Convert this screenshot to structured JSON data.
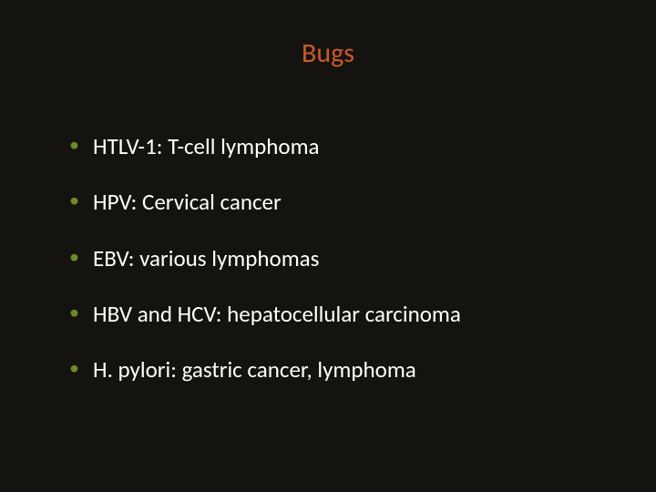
{
  "slide": {
    "title": "Bugs",
    "title_color": "#c75a2e",
    "bullet_color": "#6b8e23",
    "text_color": "#ffffff",
    "background_color": "#15130f",
    "title_fontsize": 30,
    "body_fontsize": 25,
    "items": [
      "HTLV-1: T-cell lymphoma",
      "HPV: Cervical cancer",
      "EBV: various lymphomas",
      "HBV and HCV: hepatocellular carcinoma",
      "H. pylori: gastric cancer, lymphoma"
    ]
  }
}
